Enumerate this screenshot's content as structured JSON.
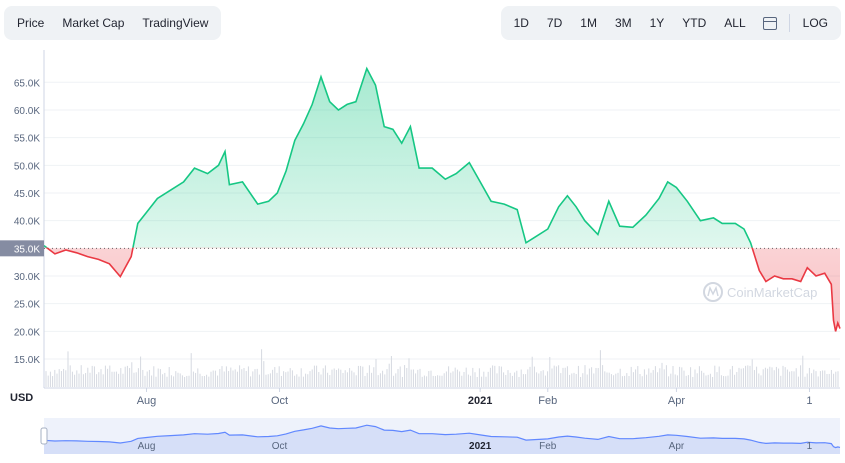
{
  "tabs": {
    "left": [
      "Price",
      "Market Cap",
      "TradingView"
    ],
    "left_active": 0,
    "right": [
      "1D",
      "7D",
      "1M",
      "3M",
      "1Y",
      "YTD",
      "ALL"
    ],
    "right_active": 4,
    "log_label": "LOG"
  },
  "currency_label": "USD",
  "watermark": "CoinMarketCap",
  "colors": {
    "up": "#16c784",
    "down": "#ea3943",
    "navigator": "#6188ff",
    "baseline_label_bg": "#858ca2"
  },
  "chart_data": {
    "type": "area",
    "baseline": {
      "value": 35000,
      "label": "35.0K"
    },
    "ylim": [
      10000,
      70000
    ],
    "y_ticks": [
      {
        "value": 15000,
        "label": "15.0K"
      },
      {
        "value": 20000,
        "label": "20.0K"
      },
      {
        "value": 25000,
        "label": "25.0K"
      },
      {
        "value": 30000,
        "label": "30.0K"
      },
      {
        "value": 35000,
        "label": "35.0K"
      },
      {
        "value": 40000,
        "label": "40.0K"
      },
      {
        "value": 45000,
        "label": "45.0K"
      },
      {
        "value": 50000,
        "label": "50.0K"
      },
      {
        "value": 55000,
        "label": "55.0K"
      },
      {
        "value": 60000,
        "label": "60.0K"
      },
      {
        "value": 65000,
        "label": "65.0K"
      }
    ],
    "x_range": [
      "2021-06-15",
      "2022-06-15"
    ],
    "x_ticks": [
      {
        "date": "2021-08-01",
        "label": "Aug",
        "bold": false
      },
      {
        "date": "2021-10-01",
        "label": "Oct",
        "bold": false
      },
      {
        "date": "2022-01-01",
        "label": "2021",
        "bold": true
      },
      {
        "date": "2022-02-01",
        "label": "Feb",
        "bold": false
      },
      {
        "date": "2022-04-01",
        "label": "Apr",
        "bold": false
      },
      {
        "date": "2022-06-01",
        "label": "1",
        "bold": false
      }
    ],
    "series": [
      {
        "values": [
          [
            "2021-06-15",
            35500
          ],
          [
            "2021-06-20",
            34000
          ],
          [
            "2021-06-25",
            34700
          ],
          [
            "2021-06-30",
            34200
          ],
          [
            "2021-07-05",
            33500
          ],
          [
            "2021-07-10",
            33000
          ],
          [
            "2021-07-15",
            32200
          ],
          [
            "2021-07-20",
            29900
          ],
          [
            "2021-07-25",
            33500
          ],
          [
            "2021-07-28",
            39500
          ],
          [
            "2021-08-01",
            41500
          ],
          [
            "2021-08-06",
            44000
          ],
          [
            "2021-08-12",
            45500
          ],
          [
            "2021-08-18",
            47000
          ],
          [
            "2021-08-23",
            49500
          ],
          [
            "2021-08-29",
            48500
          ],
          [
            "2021-09-03",
            50000
          ],
          [
            "2021-09-06",
            52500
          ],
          [
            "2021-09-08",
            46500
          ],
          [
            "2021-09-14",
            47000
          ],
          [
            "2021-09-21",
            43000
          ],
          [
            "2021-09-26",
            43500
          ],
          [
            "2021-09-30",
            45000
          ],
          [
            "2021-10-04",
            49000
          ],
          [
            "2021-10-08",
            54500
          ],
          [
            "2021-10-12",
            57500
          ],
          [
            "2021-10-16",
            61000
          ],
          [
            "2021-10-20",
            66000
          ],
          [
            "2021-10-24",
            61500
          ],
          [
            "2021-10-28",
            60000
          ],
          [
            "2021-11-01",
            61000
          ],
          [
            "2021-11-05",
            61500
          ],
          [
            "2021-11-10",
            67500
          ],
          [
            "2021-11-14",
            64500
          ],
          [
            "2021-11-18",
            57000
          ],
          [
            "2021-11-22",
            56500
          ],
          [
            "2021-11-26",
            54000
          ],
          [
            "2021-11-30",
            57000
          ],
          [
            "2021-12-04",
            49500
          ],
          [
            "2021-12-10",
            49500
          ],
          [
            "2021-12-16",
            47500
          ],
          [
            "2021-12-21",
            48500
          ],
          [
            "2021-12-27",
            50500
          ],
          [
            "2022-01-01",
            47000
          ],
          [
            "2022-01-06",
            43500
          ],
          [
            "2022-01-12",
            43000
          ],
          [
            "2022-01-18",
            42000
          ],
          [
            "2022-01-22",
            36000
          ],
          [
            "2022-01-26",
            37000
          ],
          [
            "2022-02-01",
            38500
          ],
          [
            "2022-02-06",
            42500
          ],
          [
            "2022-02-10",
            44500
          ],
          [
            "2022-02-14",
            42500
          ],
          [
            "2022-02-18",
            40000
          ],
          [
            "2022-02-24",
            37500
          ],
          [
            "2022-03-01",
            43500
          ],
          [
            "2022-03-06",
            39000
          ],
          [
            "2022-03-12",
            38800
          ],
          [
            "2022-03-18",
            41000
          ],
          [
            "2022-03-24",
            44000
          ],
          [
            "2022-03-28",
            47000
          ],
          [
            "2022-04-01",
            46000
          ],
          [
            "2022-04-06",
            43500
          ],
          [
            "2022-04-12",
            40000
          ],
          [
            "2022-04-18",
            40500
          ],
          [
            "2022-04-22",
            39500
          ],
          [
            "2022-04-28",
            39500
          ],
          [
            "2022-05-02",
            38500
          ],
          [
            "2022-05-05",
            36000
          ],
          [
            "2022-05-09",
            31000
          ],
          [
            "2022-05-12",
            29000
          ],
          [
            "2022-05-16",
            30000
          ],
          [
            "2022-05-20",
            29500
          ],
          [
            "2022-05-24",
            29500
          ],
          [
            "2022-05-28",
            29000
          ],
          [
            "2022-05-31",
            31500
          ],
          [
            "2022-06-04",
            30000
          ],
          [
            "2022-06-08",
            30500
          ],
          [
            "2022-06-11",
            28500
          ],
          [
            "2022-06-12",
            22000
          ],
          [
            "2022-06-13",
            20000
          ],
          [
            "2022-06-14",
            21500
          ],
          [
            "2022-06-15",
            20500
          ]
        ]
      }
    ]
  }
}
